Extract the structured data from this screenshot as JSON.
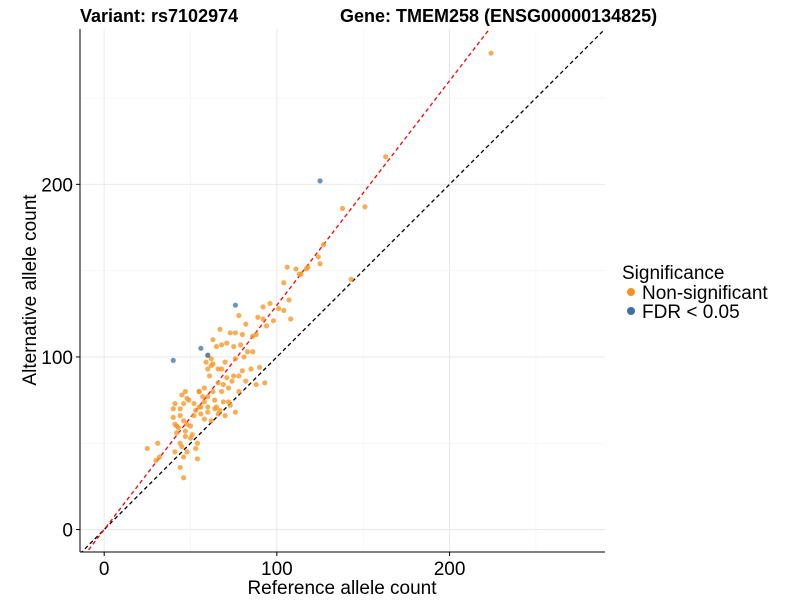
{
  "title_left": "Variant: rs7102974",
  "title_right": "Gene: TMEM258 (ENSG00000134825)",
  "chart_data": {
    "type": "scatter",
    "xlabel": "Reference allele count",
    "ylabel": "Alternative allele count",
    "xlim": [
      -14,
      290
    ],
    "ylim": [
      -13,
      290
    ],
    "x_ticks": [
      0,
      100,
      200
    ],
    "y_ticks": [
      0,
      100,
      200
    ],
    "grid": true,
    "legend": {
      "title": "Significance",
      "position": "right",
      "entries": [
        {
          "label": "Non-significant",
          "color": "#f7931e"
        },
        {
          "label": "FDR < 0.05",
          "color": "#3e6fa8"
        }
      ]
    },
    "reference_lines": [
      {
        "slope": 1.0,
        "intercept": 0,
        "color": "#000000",
        "style": "dashed"
      },
      {
        "slope": 1.3,
        "intercept": 0,
        "color": "#ff0000",
        "style": "dashed"
      }
    ],
    "series": [
      {
        "name": "Non-significant",
        "color": "#f7931e",
        "points": [
          [
            224,
            276
          ],
          [
            163,
            216
          ],
          [
            151,
            187
          ],
          [
            138,
            186
          ],
          [
            143,
            145
          ],
          [
            124,
            158
          ],
          [
            125,
            154
          ],
          [
            127,
            165
          ],
          [
            117,
            151
          ],
          [
            113,
            148
          ],
          [
            111,
            151
          ],
          [
            106,
            152
          ],
          [
            104,
            143
          ],
          [
            114,
            148
          ],
          [
            118,
            152
          ],
          [
            107,
            133
          ],
          [
            108,
            122
          ],
          [
            104,
            127
          ],
          [
            96,
            131
          ],
          [
            101,
            128
          ],
          [
            98,
            121
          ],
          [
            92,
            129
          ],
          [
            92,
            122
          ],
          [
            89,
            123
          ],
          [
            88,
            113
          ],
          [
            94,
            118
          ],
          [
            86,
            112
          ],
          [
            82,
            119
          ],
          [
            78,
            124
          ],
          [
            76,
            114
          ],
          [
            80,
            113
          ],
          [
            83,
            103
          ],
          [
            79,
            107
          ],
          [
            86,
            103
          ],
          [
            75,
            106
          ],
          [
            73,
            114
          ],
          [
            71,
            108
          ],
          [
            68,
            107
          ],
          [
            67,
            116
          ],
          [
            65,
            106
          ],
          [
            63,
            110
          ],
          [
            60,
            101
          ],
          [
            62,
            99
          ],
          [
            70,
            97
          ],
          [
            76,
            99
          ],
          [
            78,
            89
          ],
          [
            85,
            93
          ],
          [
            90,
            94
          ],
          [
            93,
            85
          ],
          [
            88,
            84
          ],
          [
            82,
            86
          ],
          [
            80,
            92
          ],
          [
            75,
            89
          ],
          [
            74,
            86
          ],
          [
            72,
            82
          ],
          [
            71,
            88
          ],
          [
            68,
            93
          ],
          [
            66,
            85
          ],
          [
            60,
            93
          ],
          [
            61,
            89
          ],
          [
            58,
            82
          ],
          [
            58,
            74
          ],
          [
            55,
            80
          ],
          [
            57,
            77
          ],
          [
            53,
            69
          ],
          [
            64,
            75
          ],
          [
            67,
            69
          ],
          [
            70,
            66
          ],
          [
            76,
            68
          ],
          [
            72,
            74
          ],
          [
            78,
            80
          ],
          [
            69,
            84
          ],
          [
            63,
            80
          ],
          [
            60,
            71
          ],
          [
            62,
            63
          ],
          [
            55,
            71
          ],
          [
            52,
            66
          ],
          [
            50,
            60
          ],
          [
            51,
            55
          ],
          [
            53,
            47
          ],
          [
            48,
            45
          ],
          [
            47,
            54
          ],
          [
            46,
            63
          ],
          [
            44,
            66
          ],
          [
            42,
            60
          ],
          [
            44,
            70
          ],
          [
            46,
            73
          ],
          [
            48,
            76
          ],
          [
            47,
            80
          ],
          [
            45,
            78
          ],
          [
            41,
            73
          ],
          [
            40,
            70
          ],
          [
            40,
            65
          ],
          [
            44,
            50
          ],
          [
            46,
            42
          ],
          [
            44,
            36
          ],
          [
            46,
            30
          ],
          [
            41,
            45
          ],
          [
            31,
            50
          ],
          [
            32,
            42
          ],
          [
            30,
            40
          ],
          [
            25,
            47
          ],
          [
            48,
            61
          ],
          [
            49,
            75
          ],
          [
            52,
            73
          ],
          [
            56,
            71
          ],
          [
            60,
            77
          ],
          [
            65,
            71
          ],
          [
            69,
            74
          ],
          [
            73,
            72
          ],
          [
            56,
            67
          ],
          [
            58,
            64
          ],
          [
            66,
            67
          ],
          [
            54,
            50
          ],
          [
            50,
            53
          ],
          [
            45,
            48
          ],
          [
            42,
            56
          ],
          [
            54,
            41
          ],
          [
            59,
            97
          ],
          [
            63,
            96
          ],
          [
            66,
            93
          ],
          [
            62,
            95
          ],
          [
            81,
            100
          ],
          [
            68,
            80
          ],
          [
            55,
            80
          ],
          [
            41,
            61
          ],
          [
            47,
            57
          ],
          [
            43,
            59
          ],
          [
            60,
            68
          ],
          [
            64,
            70
          ]
        ]
      },
      {
        "name": "FDR < 0.05",
        "color": "#3e6fa8",
        "points": [
          [
            125,
            202
          ],
          [
            76,
            130
          ],
          [
            56,
            105
          ],
          [
            40,
            98
          ],
          [
            60,
            101
          ]
        ]
      }
    ]
  }
}
